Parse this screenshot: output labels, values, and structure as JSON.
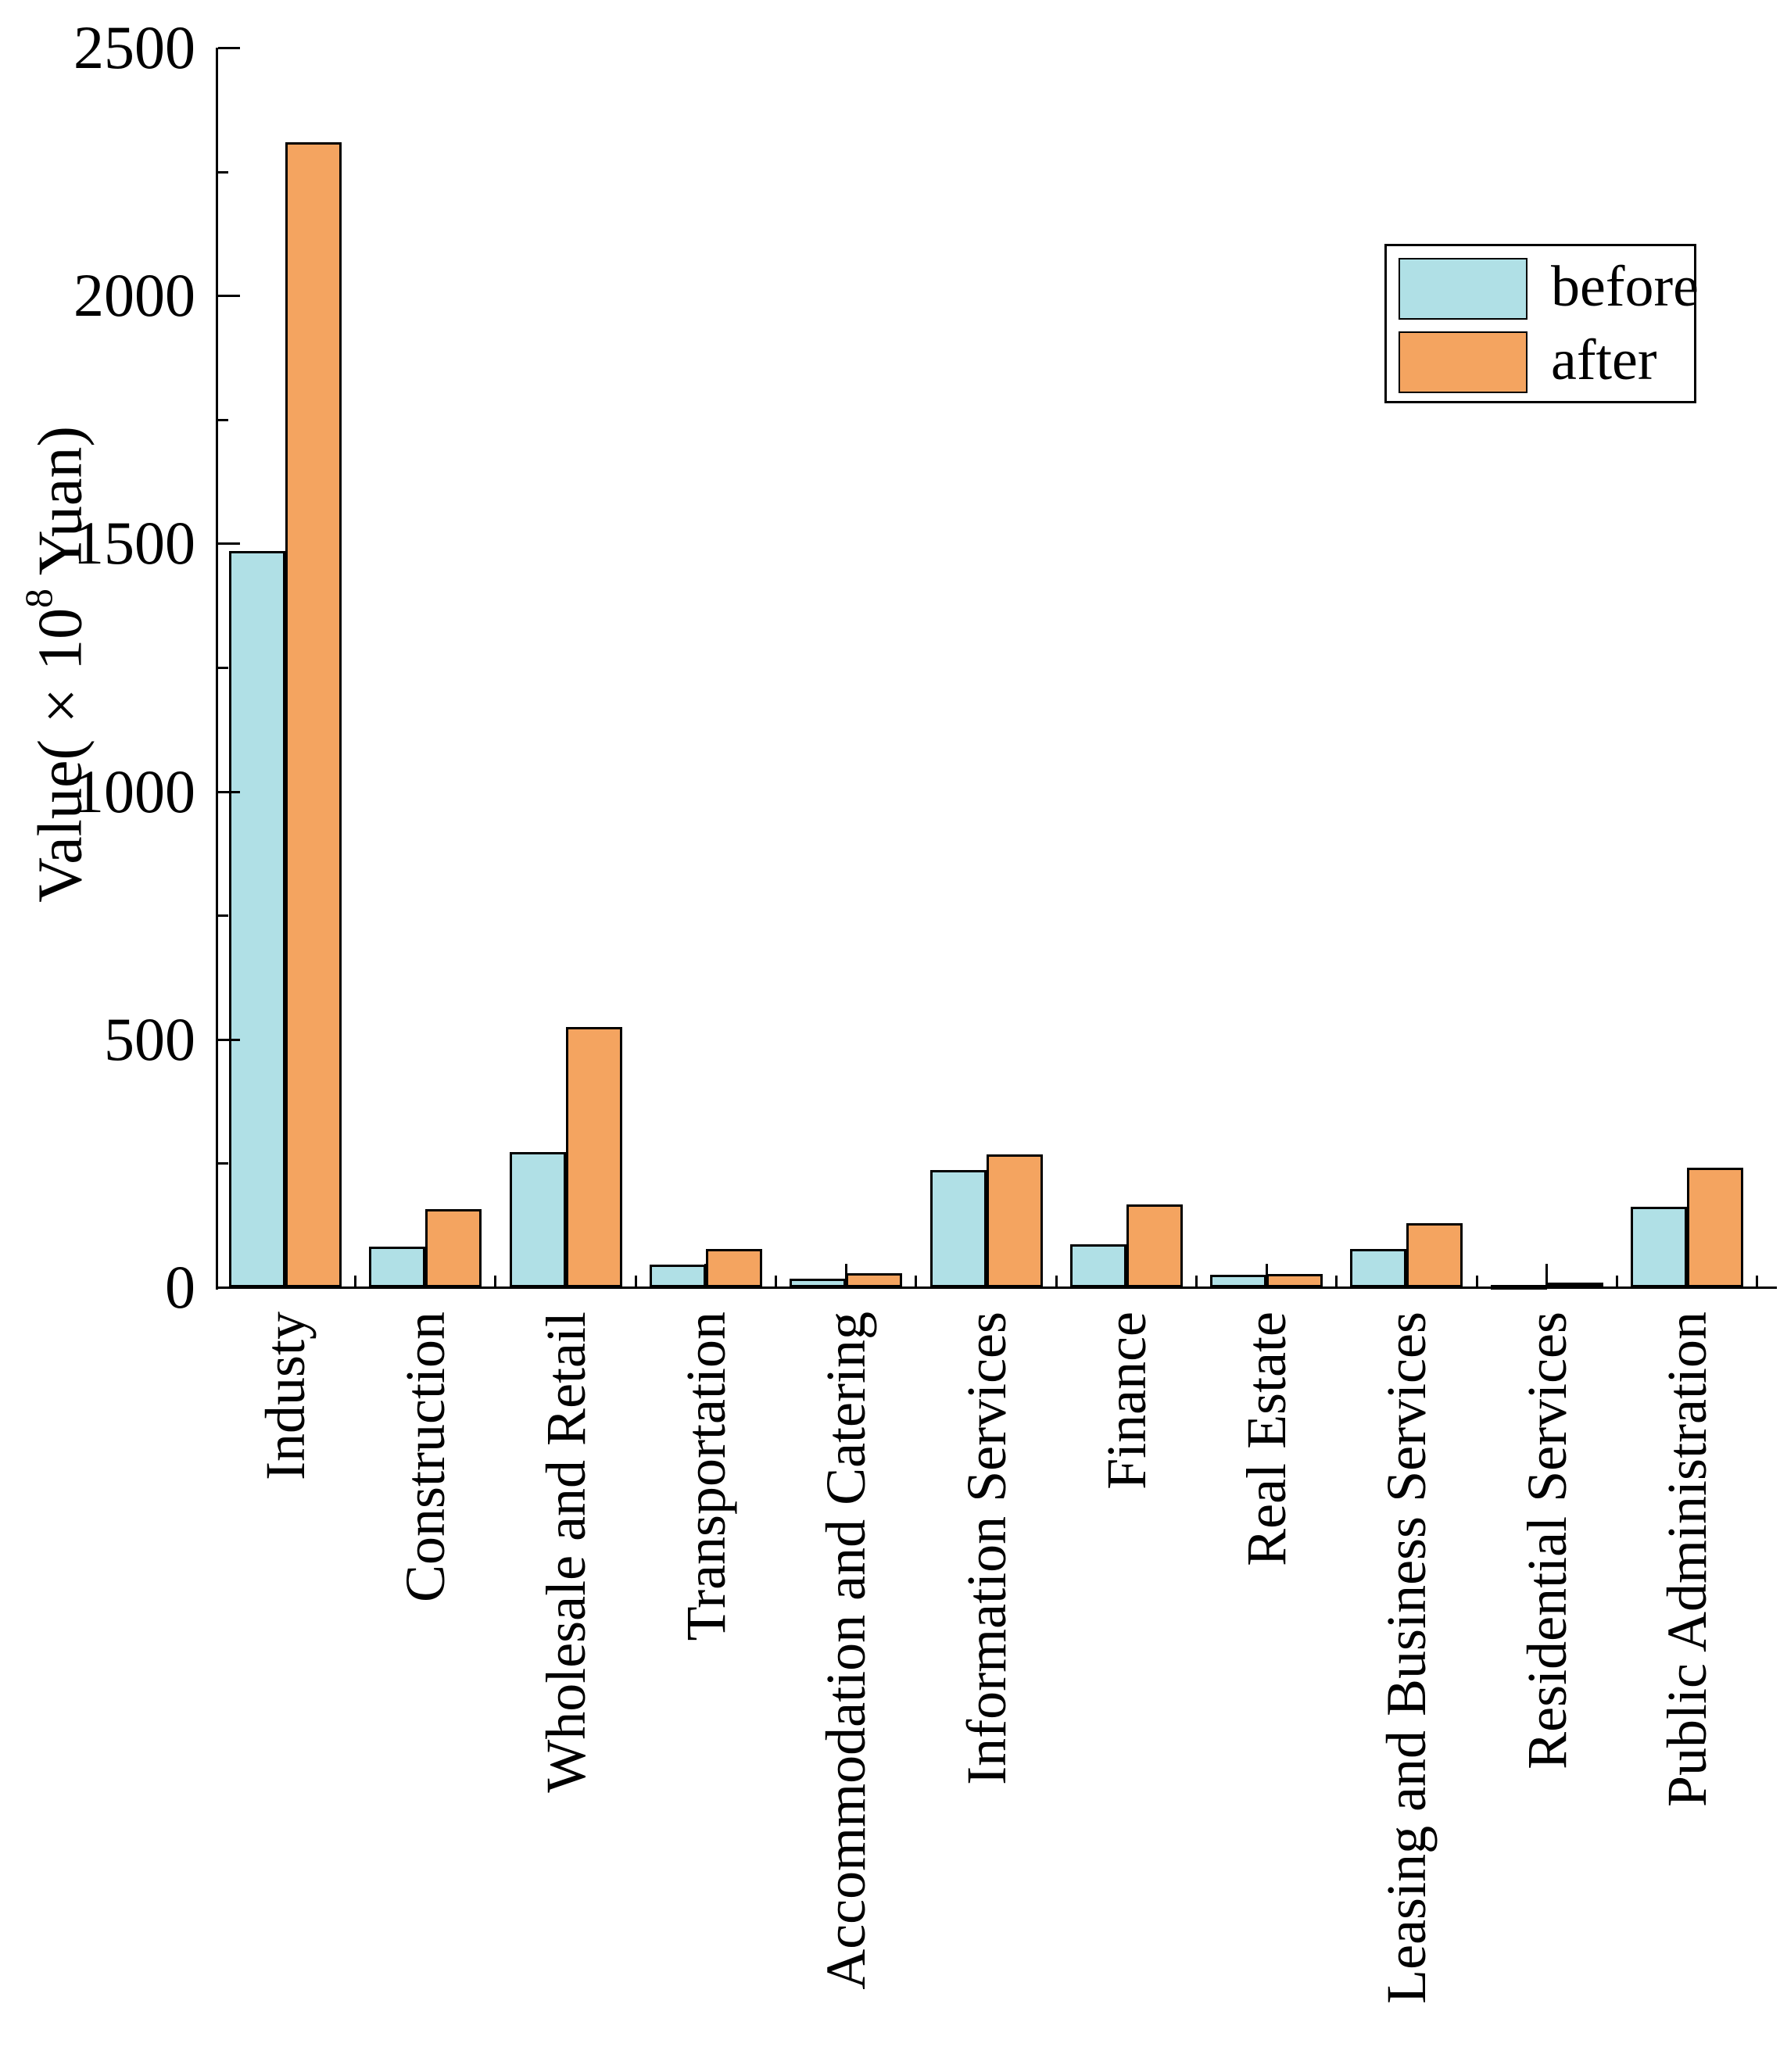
{
  "chart_data": {
    "type": "bar",
    "title": "",
    "xlabel": "",
    "ylabel": "Value(×10⁸ Yuan)",
    "ylabel_parts": [
      "Value(×10",
      "8",
      " Yuan)"
    ],
    "categories": [
      "Industy",
      "Construction",
      "Wholesale and Retail",
      "Transportation",
      "Accommodation and Catering",
      "Information Services",
      "Finance",
      "Real Estate",
      "Leasing and Business Services",
      "Residential Services",
      "Public Administration"
    ],
    "series": [
      {
        "name": "before",
        "color": "#B0E0E6",
        "values": [
          1485,
          82,
          272,
          46,
          17,
          237,
          87,
          25,
          77,
          4,
          162
        ]
      },
      {
        "name": "after",
        "color": "#F4A460",
        "values": [
          2310,
          157,
          525,
          77,
          29,
          268,
          167,
          27,
          129,
          9,
          241
        ]
      }
    ],
    "ylim": [
      0,
      2500
    ],
    "yticks_major": [
      0,
      500,
      1000,
      1500,
      2000,
      2500
    ],
    "yticks_minor": [
      250,
      750,
      1250,
      1750,
      2250
    ],
    "grid": false,
    "legend_position": "upper right",
    "bar_edge_color": "#000000",
    "background_color": "#ffffff"
  },
  "legend": {
    "items": [
      {
        "label": "before",
        "color": "#B0E0E6"
      },
      {
        "label": "after",
        "color": "#F4A460"
      }
    ]
  }
}
